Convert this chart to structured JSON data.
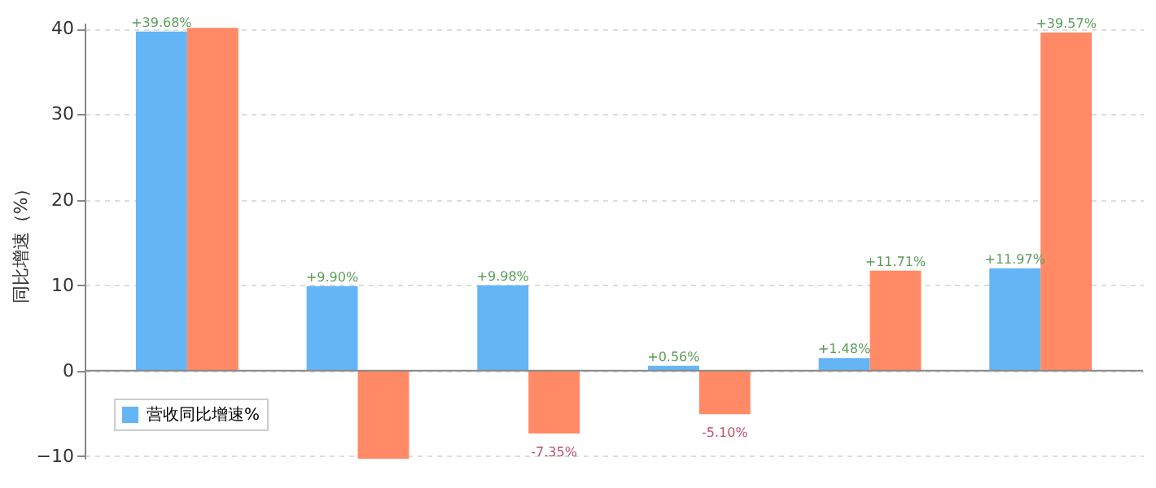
{
  "chart_data": {
    "type": "bar",
    "ylabel": "同比增速（%）",
    "categories": [
      null,
      null,
      null,
      null,
      null,
      null
    ],
    "series": [
      {
        "name": "营收同比增速%",
        "color": "#64b5f6",
        "values": [
          39.68,
          9.9,
          9.98,
          0.56,
          1.48,
          11.97
        ],
        "value_labels": [
          "+39.68%",
          "+9.90%",
          "+9.98%",
          "+0.56%",
          "+1.48%",
          "+11.97%"
        ]
      },
      {
        "color": "#ff8a65",
        "values": [
          40.1,
          -10.3,
          -7.35,
          -5.1,
          11.71,
          39.57
        ],
        "value_labels": [
          null,
          null,
          "-7.35%",
          "-5.10%",
          "+11.71%",
          "+39.57%"
        ]
      }
    ],
    "ylim": [
      -10.3,
      40.7
    ],
    "yticks": [
      -10,
      0,
      10,
      20,
      30,
      40
    ],
    "grid": "y",
    "legend": "bottom left",
    "tick_labels": "y"
  }
}
